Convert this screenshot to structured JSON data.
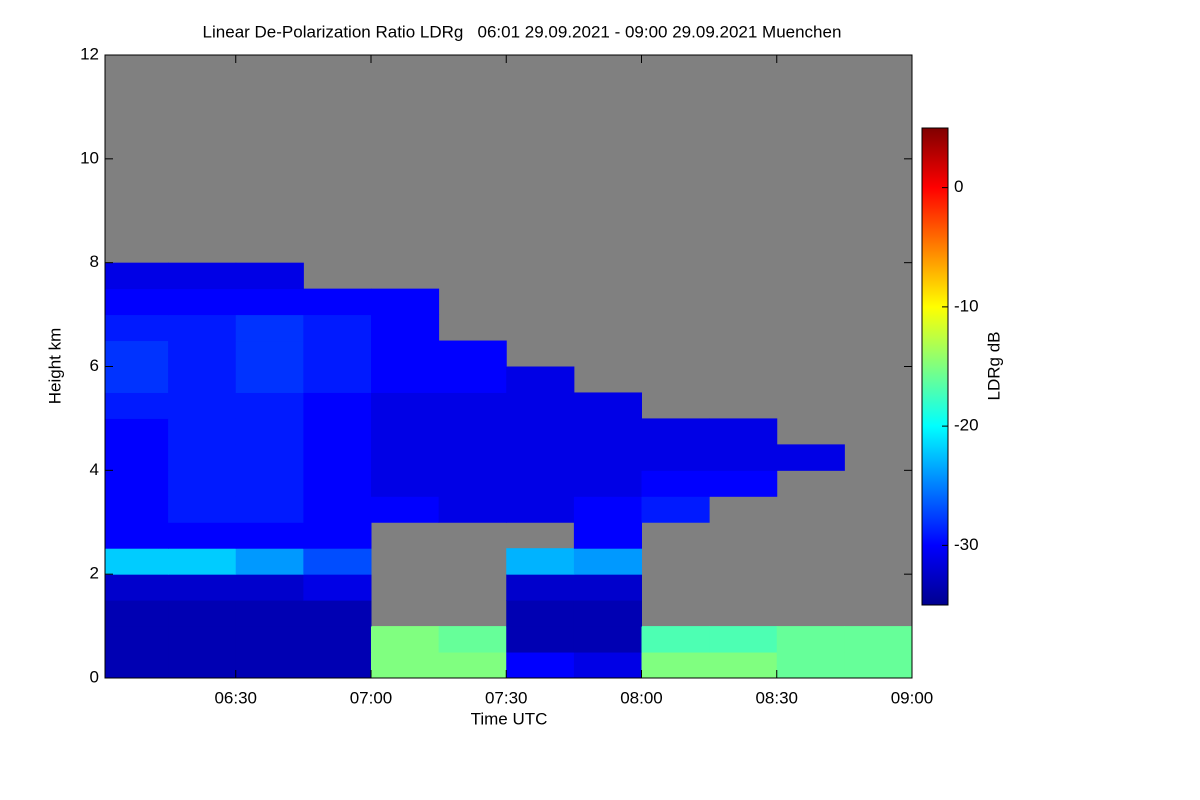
{
  "chart_data": {
    "type": "heatmap",
    "title": "Linear De-Polarization Ratio LDRg   06:01 29.09.2021 - 09:00 29.09.2021 Muenchen",
    "xlabel": "Time UTC",
    "ylabel": "Height km",
    "xlim": [
      "06:01",
      "09:00"
    ],
    "xticks": [
      "06:30",
      "07:00",
      "07:30",
      "08:00",
      "08:30",
      "09:00"
    ],
    "ylim": [
      0,
      12
    ],
    "yticks": [
      0,
      2,
      4,
      6,
      8,
      10,
      12
    ],
    "xbins": [
      "06:01",
      "06:15",
      "06:30",
      "06:45",
      "07:00",
      "07:15",
      "07:30",
      "07:45",
      "08:00",
      "08:15",
      "08:30",
      "08:45",
      "09:00"
    ],
    "ybins": [
      0,
      0.5,
      1,
      1.5,
      2,
      2.5,
      3,
      3.5,
      4,
      4.5,
      5,
      5.5,
      6,
      6.5,
      7,
      7.5,
      8
    ],
    "z": [
      [
        -33,
        -33,
        -33,
        -33,
        -15,
        -15,
        -30,
        -31,
        -15,
        -15,
        -16,
        -16
      ],
      [
        -33,
        -33,
        -33,
        -33,
        -15,
        -16,
        -33,
        -33,
        -17,
        -17,
        -16,
        -16
      ],
      [
        -33,
        -33,
        -33,
        -33,
        null,
        null,
        -33,
        -33,
        null,
        null,
        null,
        null
      ],
      [
        -32,
        -32,
        -32,
        -31,
        null,
        null,
        -32,
        -32,
        null,
        null,
        null,
        null
      ],
      [
        -22,
        -22,
        -24,
        -27,
        null,
        null,
        -23,
        -24,
        null,
        null,
        null,
        null
      ],
      [
        -30,
        -30,
        -30,
        -30,
        null,
        null,
        null,
        -30,
        null,
        null,
        null,
        null
      ],
      [
        -30,
        -29,
        -29,
        -30,
        -30,
        -31,
        -31,
        -30,
        -29,
        null,
        null,
        null
      ],
      [
        -30,
        -29,
        -29,
        -30,
        -31,
        -31,
        -31,
        -31,
        -30,
        -30,
        null,
        null
      ],
      [
        -30,
        -29,
        -29,
        -30,
        -31,
        -31,
        -31,
        -31,
        -31,
        -31,
        -31,
        null
      ],
      [
        -30,
        -29,
        -29,
        -30,
        -31,
        -31,
        -31,
        -31,
        -31,
        -31,
        null,
        null
      ],
      [
        -29,
        -29,
        -29,
        -30,
        -31,
        -31,
        -31,
        -31,
        null,
        null,
        null,
        null
      ],
      [
        -28,
        -29,
        -28,
        -29,
        -30,
        -30,
        -31,
        null,
        null,
        null,
        null,
        null
      ],
      [
        -28,
        -29,
        -28,
        -29,
        -30,
        -30,
        null,
        null,
        null,
        null,
        null,
        null
      ],
      [
        -29,
        -29,
        -28,
        -29,
        -30,
        null,
        null,
        null,
        null,
        null,
        null,
        null
      ],
      [
        -30,
        -30,
        -30,
        -30,
        -30,
        null,
        null,
        null,
        null,
        null,
        null,
        null
      ],
      [
        -31,
        -31,
        -31,
        null,
        null,
        null,
        null,
        null,
        null,
        null,
        null,
        null
      ]
    ],
    "colormap": "jet",
    "no_signal_color": "#808080",
    "zlim": [
      -35,
      5
    ],
    "colorbar_ticks": [
      0,
      -10,
      -20,
      -30
    ],
    "colorbar_label": "LDRg dB"
  }
}
